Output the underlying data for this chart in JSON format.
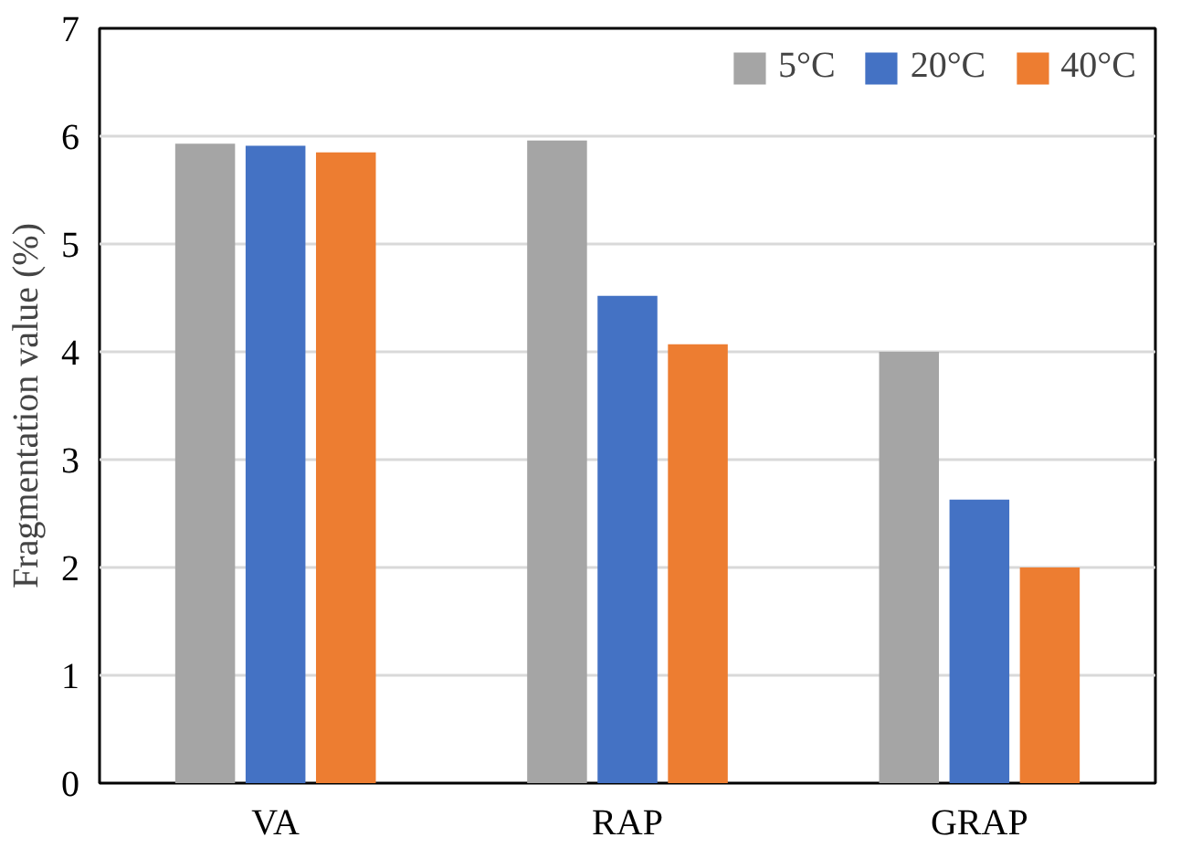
{
  "chart_data": {
    "type": "bar",
    "ylabel": "Fragmentation value (%)",
    "categories": [
      "VA",
      "RAP",
      "GRAP"
    ],
    "series": [
      {
        "name": "5°C",
        "color": "#a5a5a5",
        "values": [
          5.93,
          5.96,
          4.0
        ]
      },
      {
        "name": "20°C",
        "color": "#4472c4",
        "values": [
          5.91,
          4.52,
          2.63
        ]
      },
      {
        "name": "40°C",
        "color": "#ed7d31",
        "values": [
          5.85,
          4.07,
          2.0
        ]
      }
    ],
    "ylim": [
      0,
      7
    ],
    "yticks": [
      0,
      1,
      2,
      3,
      4,
      5,
      6,
      7
    ],
    "grid": "y",
    "legend": "top right"
  }
}
